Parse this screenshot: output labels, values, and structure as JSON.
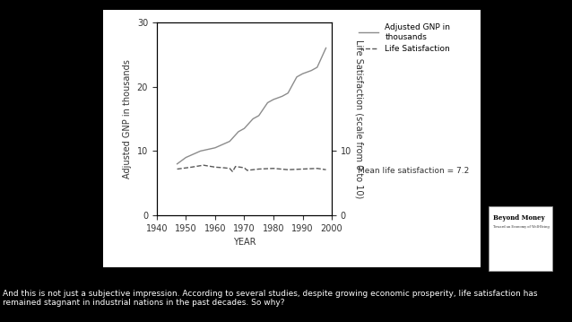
{
  "chart_data": {
    "type": "line",
    "xlabel": "YEAR",
    "ylabel": "Adjusted GNP in thousands",
    "y2label": "Life Satisfaction (scale from 0 to 10)",
    "annotation": "Mean life satisfaction = 7.2",
    "xlim": [
      1940,
      2000
    ],
    "xticks": [
      1940,
      1950,
      1960,
      1970,
      1980,
      1990,
      2000
    ],
    "ylim": [
      0,
      30
    ],
    "yticks": [
      0,
      10,
      20,
      30
    ],
    "y2lim": [
      0,
      30
    ],
    "y2ticks": [
      0,
      10
    ],
    "grid": false,
    "legend": "upper right",
    "series": [
      {
        "name": "Adjusted GNP in\nthousands",
        "color": "#8c8c8c",
        "line_style": "solid",
        "x": [
          1947,
          1950,
          1955,
          1960,
          1965,
          1968,
          1970,
          1973,
          1975,
          1978,
          1980,
          1983,
          1985,
          1988,
          1990,
          1993,
          1995,
          1998
        ],
        "values": [
          8.0,
          9.0,
          10.0,
          10.5,
          11.5,
          13.0,
          13.5,
          15.0,
          15.5,
          17.5,
          18.0,
          18.5,
          19.0,
          21.5,
          22.0,
          22.5,
          23.0,
          26.0
        ]
      },
      {
        "name": "Life Satisfaction",
        "color": "#5a5a5a",
        "line_style": "dashed",
        "axis": "y2",
        "x": [
          1947,
          1952,
          1956,
          1960,
          1963,
          1965,
          1966,
          1967,
          1970,
          1971,
          1975,
          1980,
          1985,
          1990,
          1995,
          1998
        ],
        "values": [
          7.2,
          7.5,
          7.8,
          7.5,
          7.4,
          7.3,
          6.8,
          7.6,
          7.4,
          7.0,
          7.2,
          7.3,
          7.1,
          7.2,
          7.3,
          7.1
        ]
      }
    ]
  },
  "caption": "And this is not just a subjective impression. According to several studies, despite growing economic prosperity, life satisfaction has remained stagnant in industrial nations in the past decades. So why?",
  "document": {
    "title": "Beyond Money",
    "subtitle": "Toward an Economy of Well-Being"
  }
}
